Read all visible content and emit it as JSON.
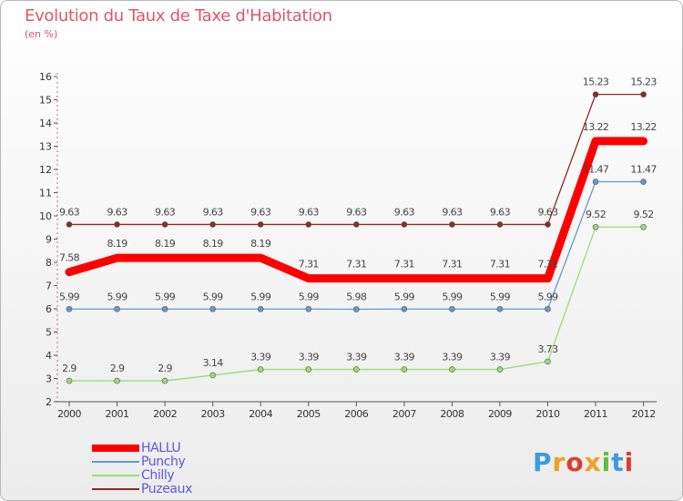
{
  "chart_data": {
    "type": "line",
    "title": "Evolution du Taux de Taxe d'Habitation",
    "subtitle": "(en %)",
    "xlabel": "",
    "ylabel": "",
    "categories": [
      "2000",
      "2001",
      "2002",
      "2003",
      "2004",
      "2005",
      "2006",
      "2007",
      "2008",
      "2009",
      "2010",
      "2011",
      "2012"
    ],
    "ylim": [
      2,
      16
    ],
    "yticks": [
      "2",
      "3",
      "4",
      "5",
      "6",
      "7",
      "8",
      "9",
      "10",
      "11",
      "12",
      "13",
      "14",
      "15",
      "16"
    ],
    "grid": false,
    "series": [
      {
        "name": "HALLU",
        "color": "#ff0000",
        "values": [
          7.58,
          8.19,
          8.19,
          8.19,
          8.19,
          7.31,
          7.31,
          7.31,
          7.31,
          7.31,
          7.31,
          13.22,
          13.22
        ],
        "labels": [
          "7.58",
          "8.19",
          "8.19",
          "8.19",
          "8.19",
          "7.31",
          "7.31",
          "7.31",
          "7.31",
          "7.31",
          "7.31",
          "13.22",
          "13.22"
        ]
      },
      {
        "name": "Punchy",
        "color": "#6699cc",
        "values": [
          5.99,
          5.99,
          5.99,
          5.99,
          5.99,
          5.99,
          5.98,
          5.99,
          5.99,
          5.99,
          5.99,
          11.47,
          11.47
        ],
        "labels": [
          "5.99",
          "5.99",
          "5.99",
          "5.99",
          "5.99",
          "5.99",
          "5.98",
          "5.99",
          "5.99",
          "5.99",
          "5.99",
          "11.47",
          "11.47"
        ]
      },
      {
        "name": "Chilly",
        "color": "#99dd77",
        "values": [
          2.9,
          2.9,
          2.9,
          3.14,
          3.39,
          3.39,
          3.39,
          3.39,
          3.39,
          3.39,
          3.73,
          9.52,
          9.52
        ],
        "labels": [
          "2.9",
          "2.9",
          "2.9",
          "3.14",
          "3.39",
          "3.39",
          "3.39",
          "3.39",
          "3.39",
          "3.39",
          "3.73",
          "9.52",
          "9.52"
        ]
      },
      {
        "name": "Puzeaux",
        "color": "#8b2b2b",
        "values": [
          9.63,
          9.63,
          9.63,
          9.63,
          9.63,
          9.63,
          9.63,
          9.63,
          9.63,
          9.63,
          9.63,
          15.23,
          15.23
        ],
        "labels": [
          "9.63",
          "9.63",
          "9.63",
          "9.63",
          "9.63",
          "9.63",
          "9.63",
          "9.63",
          "9.63",
          "9.63",
          "9.63",
          "15.23",
          "15.23"
        ]
      }
    ],
    "legend": "bottom-left"
  },
  "legend_entries": [
    {
      "name": "HALLU",
      "color": "#ff0000"
    },
    {
      "name": "Punchy",
      "color": "#6699cc"
    },
    {
      "name": "Chilly",
      "color": "#99dd77"
    },
    {
      "name": "Puzeaux",
      "color": "#8b2b2b"
    }
  ],
  "logo": {
    "text": "Proxiti",
    "letters": [
      {
        "ch": "P",
        "color": "#3a9be0"
      },
      {
        "ch": "r",
        "color": "#f0a020"
      },
      {
        "ch": "o",
        "color": "#e23b2e"
      },
      {
        "ch": "x",
        "color": "#f0a020"
      },
      {
        "ch": "i",
        "color": "#5cbf3a"
      },
      {
        "ch": "t",
        "color": "#3a9be0"
      },
      {
        "ch": "i",
        "color": "#e23b2e"
      }
    ]
  }
}
